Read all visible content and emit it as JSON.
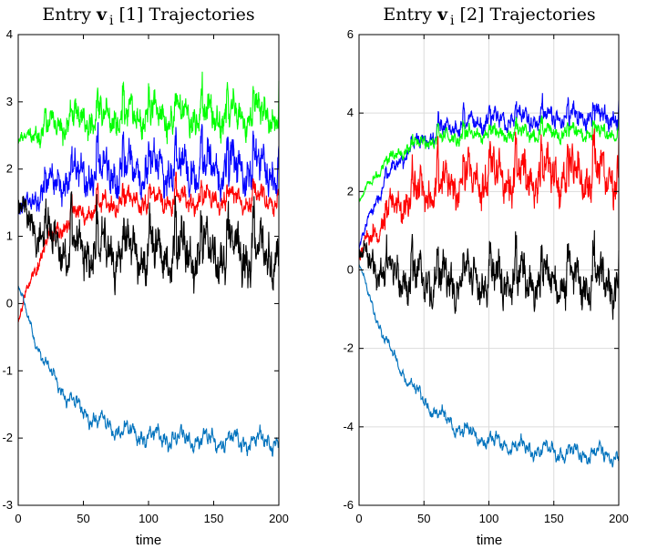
{
  "chart_data": [
    {
      "type": "line",
      "title": "Entry v i [1] Trajectories",
      "title_parts": {
        "prefix": "Entry ",
        "symbol": "v",
        "subscript": "i",
        "suffix": " [1] Trajectories"
      },
      "xlabel": "time",
      "ylabel": "",
      "xlim": [
        0,
        200
      ],
      "ylim": [
        -3,
        4
      ],
      "xticks": [
        0,
        50,
        100,
        150,
        200
      ],
      "yticks": [
        -3,
        -2,
        -1,
        0,
        1,
        2,
        3,
        4
      ],
      "grid": false,
      "series": [
        {
          "color": "#00ff00",
          "start": 2.4,
          "mean": 2.8,
          "amp": 0.2,
          "rise": 30,
          "spike": 1
        },
        {
          "color": "#0000ff",
          "start": 1.3,
          "mean": 2.0,
          "amp": 0.25,
          "rise": 25,
          "spike": 1
        },
        {
          "color": "#ff0000",
          "start": -0.3,
          "mean": 1.55,
          "amp": 0.13,
          "rise": 22,
          "spike": 1
        },
        {
          "color": "#000000",
          "start": 1.5,
          "mean": 0.75,
          "amp": 0.3,
          "rise": 18,
          "spike": 1
        },
        {
          "color": "#0072bd",
          "start": 0.3,
          "mean": -2.05,
          "amp": 0.13,
          "rise": 30,
          "spike": 0
        }
      ]
    },
    {
      "type": "line",
      "title": "Entry v i [2] Trajectories",
      "title_parts": {
        "prefix": "Entry ",
        "symbol": "v",
        "subscript": "i",
        "suffix": " [2] Trajectories"
      },
      "xlabel": "time",
      "ylabel": "",
      "xlim": [
        0,
        200
      ],
      "ylim": [
        -6,
        6
      ],
      "xticks": [
        0,
        50,
        100,
        150,
        200
      ],
      "yticks": [
        -6,
        -4,
        -2,
        0,
        2,
        4,
        6
      ],
      "grid": true,
      "series": [
        {
          "color": "#0000ff",
          "start": 0.5,
          "mean": 3.9,
          "amp": 0.2,
          "rise": 28,
          "spike": 1
        },
        {
          "color": "#00ff00",
          "start": 1.7,
          "mean": 3.5,
          "amp": 0.15,
          "rise": 25,
          "spike": 1
        },
        {
          "color": "#ff0000",
          "start": 0.3,
          "mean": 2.4,
          "amp": 0.45,
          "rise": 30,
          "spike": 1
        },
        {
          "color": "#000000",
          "start": 0.5,
          "mean": -0.3,
          "amp": 0.45,
          "rise": 18,
          "spike": 1
        },
        {
          "color": "#0072bd",
          "start": 0.2,
          "mean": -4.75,
          "amp": 0.2,
          "rise": 40,
          "spike": 0
        }
      ]
    }
  ]
}
